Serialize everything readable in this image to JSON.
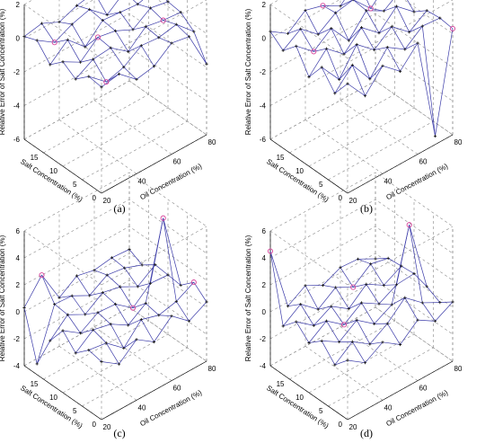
{
  "panel_labels": [
    "(a)",
    "(b)",
    "(c)",
    "(d)"
  ],
  "colors": {
    "mesh": "#3a3aa8",
    "marker": "#222222",
    "outlier": "#d8429a",
    "grid": "#888888",
    "axis": "#000000"
  },
  "chart_data": [
    {
      "type": "surface",
      "panel": "(a)",
      "xlabel": "Oil Concentration (%)",
      "ylabel": "Salt Concentration (%)",
      "zlabel": "Relative Error of Salt Concentration (%)",
      "x": [
        20,
        30,
        40,
        50,
        60,
        70,
        80
      ],
      "y": [
        0,
        3.3,
        6.7,
        10,
        13.3,
        16.7,
        20
      ],
      "xticks": [
        20,
        40,
        60,
        80
      ],
      "yticks": [
        0,
        5,
        10,
        15
      ],
      "zticks": [
        -6,
        -4,
        -2,
        0,
        2
      ],
      "zlim": [
        -6,
        2
      ],
      "grid": true,
      "z": [
        [
          0.3,
          0.5,
          -0.4,
          -0.2,
          0.6,
          0.4,
          -1.8
        ],
        [
          0.4,
          -0.5,
          -0.2,
          0.5,
          0.4,
          0.6,
          -0.4
        ],
        [
          -0.3,
          0.3,
          0.4,
          -0.4,
          0.5,
          0.3,
          0.2
        ],
        [
          0.2,
          -0.4,
          0.5,
          0.3,
          -0.2,
          0.5,
          0.3
        ],
        [
          -0.5,
          0.4,
          -0.6,
          0.4,
          0.3,
          0.2,
          0.5
        ],
        [
          0.4,
          -0.3,
          0.2,
          0.5,
          -0.4,
          0.4,
          0.3
        ],
        [
          0.1,
          0.3,
          -0.2,
          0.2,
          0.4,
          0.3,
          0.2
        ]
      ],
      "outliers": [
        [
          1,
          1
        ],
        [
          3,
          2
        ],
        [
          5,
          1
        ],
        [
          2,
          5
        ]
      ]
    },
    {
      "type": "surface",
      "panel": "(b)",
      "xlabel": "Oil Concentration (%)",
      "ylabel": "Salt Concentration (%)",
      "zlabel": "Relative Error of Salt Concentration (%)",
      "x": [
        20,
        30,
        40,
        50,
        60,
        70,
        80
      ],
      "y": [
        0,
        3.3,
        6.7,
        10,
        13.3,
        16.7,
        20
      ],
      "xticks": [
        20,
        40,
        60,
        80
      ],
      "yticks": [
        0,
        5,
        10,
        15
      ],
      "zticks": [
        -6,
        -4,
        -2,
        0,
        2
      ],
      "zlim": [
        -6,
        2
      ],
      "grid": true,
      "z": [
        [
          0.5,
          -0.8,
          0.4,
          -0.5,
          0.6,
          -5.5,
          0.3
        ],
        [
          -0.6,
          0.5,
          -0.9,
          0.4,
          -0.3,
          0.5,
          0.4
        ],
        [
          0.4,
          -0.9,
          0.6,
          -0.3,
          0.5,
          -0.4,
          0.3
        ],
        [
          -0.7,
          0.4,
          -0.5,
          0.5,
          -0.4,
          0.6,
          -0.3
        ],
        [
          0.6,
          -0.3,
          0.5,
          -0.8,
          0.4,
          -0.2,
          0.5
        ],
        [
          -0.2,
          0.5,
          -0.4,
          0.3,
          0.5,
          -0.6,
          0.4
        ],
        [
          0.4,
          -0.3,
          0.5,
          0.2,
          -0.4,
          0.6,
          0.3
        ]
      ],
      "outliers": [
        [
          0,
          6
        ],
        [
          4,
          1
        ],
        [
          6,
          3
        ],
        [
          5,
          5
        ]
      ]
    },
    {
      "type": "surface",
      "panel": "(c)",
      "xlabel": "Oil Concentration (%)",
      "ylabel": "Salt Concentration (%)",
      "zlabel": "Relative Error of Salt Concentration (%)",
      "x": [
        20,
        30,
        40,
        50,
        60,
        70,
        80
      ],
      "y": [
        0,
        3.3,
        6.7,
        10,
        13.3,
        16.7,
        20
      ],
      "xticks": [
        20,
        40,
        60,
        80
      ],
      "yticks": [
        0,
        5,
        10,
        15
      ],
      "zticks": [
        -4,
        -2,
        0,
        2,
        4,
        6
      ],
      "zlim": [
        -4,
        6
      ],
      "grid": true,
      "z": [
        [
          0.3,
          -0.6,
          0.5,
          -0.4,
          0.8,
          -0.3,
          0.4
        ],
        [
          0.5,
          0.3,
          -0.8,
          0.6,
          0.2,
          0.5,
          1.2
        ],
        [
          -0.4,
          0.6,
          0.3,
          -0.5,
          0.4,
          6.0,
          0.3
        ],
        [
          0.6,
          -0.3,
          0.5,
          0.4,
          -0.6,
          0.5,
          0.4
        ],
        [
          -0.8,
          0.4,
          -0.3,
          0.6,
          0.3,
          -0.4,
          0.5
        ],
        [
          -3.2,
          0.5,
          0.4,
          -0.3,
          0.5,
          0.3,
          -0.2
        ],
        [
          0.3,
          2.0,
          -0.4,
          0.5,
          0.2,
          0.4,
          0.3
        ]
      ],
      "outliers": [
        [
          6,
          1
        ],
        [
          2,
          5
        ],
        [
          1,
          6
        ],
        [
          3,
          4
        ]
      ]
    },
    {
      "type": "surface",
      "panel": "(d)",
      "xlabel": "Oil Concentration (%)",
      "ylabel": "Salt Concentration (%)",
      "zlabel": "Relative Error of Salt Concentration (%)",
      "x": [
        20,
        30,
        40,
        50,
        60,
        70,
        80
      ],
      "y": [
        0,
        3.3,
        6.7,
        10,
        13.3,
        16.7,
        20
      ],
      "xticks": [
        20,
        40,
        60,
        80
      ],
      "yticks": [
        0,
        5,
        10,
        15
      ],
      "zticks": [
        -4,
        -2,
        0,
        2,
        4,
        6
      ],
      "zlim": [
        -4,
        6
      ],
      "grid": true,
      "z": [
        [
          0.4,
          -0.5,
          0.3,
          -0.6,
          0.5,
          -0.3,
          0.4
        ],
        [
          -0.6,
          0.4,
          -0.5,
          0.3,
          1.5,
          0.4,
          -0.3
        ],
        [
          0.5,
          -0.3,
          0.6,
          -0.4,
          0.3,
          5.5,
          0.2
        ],
        [
          -0.3,
          0.6,
          -0.4,
          0.5,
          -0.3,
          0.4,
          0.5
        ],
        [
          0.6,
          -0.4,
          0.3,
          -0.6,
          0.5,
          -0.3,
          0.4
        ],
        [
          -0.4,
          0.5,
          -0.6,
          0.3,
          -0.4,
          0.6,
          0.3
        ],
        [
          4.5,
          -0.3,
          0.5,
          -0.2,
          0.4,
          0.3,
          -0.4
        ]
      ],
      "outliers": [
        [
          6,
          0
        ],
        [
          3,
          2
        ],
        [
          2,
          5
        ],
        [
          5,
          4
        ]
      ]
    }
  ]
}
